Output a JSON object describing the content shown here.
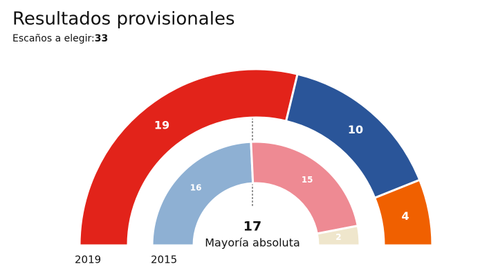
{
  "chart_data": {
    "type": "parliament",
    "title": "Resultados provisionales",
    "subtitle": "Escaños a elegir:",
    "total_seats": 33,
    "majority": {
      "value": 17,
      "label": "Mayoría absoluta"
    },
    "rings": [
      {
        "name": "2019",
        "values": [
          19,
          10,
          4
        ],
        "colors": [
          "#e2231a",
          "#2a5599",
          "#f06000"
        ]
      },
      {
        "name": "2015",
        "values": [
          16,
          15,
          2
        ],
        "colors": [
          "#8eb0d3",
          "#ee8a93",
          "#efe6cc"
        ]
      }
    ]
  }
}
